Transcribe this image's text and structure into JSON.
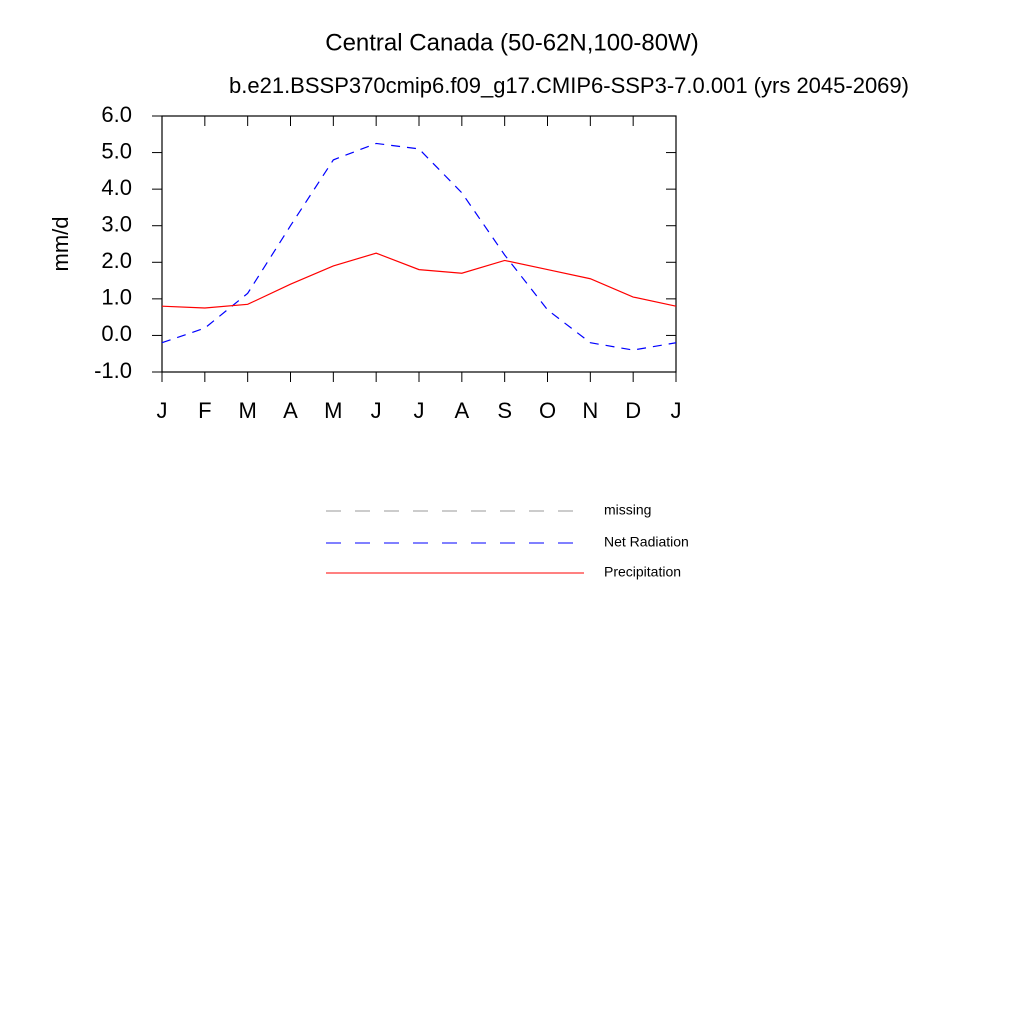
{
  "chart_data": {
    "type": "line",
    "title": "Central Canada (50-62N,100-80W)",
    "subtitle": "b.e21.BSSP370cmip6.f09_g17.CMIP6-SSP3-7.0.001 (yrs 2045-2069)",
    "y_label": "mm/d",
    "categories": [
      "J",
      "F",
      "M",
      "A",
      "M",
      "J",
      "J",
      "A",
      "S",
      "O",
      "N",
      "D",
      "J"
    ],
    "series": [
      {
        "name": "missing",
        "color": "#999999",
        "dashed": true,
        "values": [
          null,
          null,
          null,
          null,
          null,
          null,
          null,
          null,
          null,
          null,
          null,
          null,
          null
        ]
      },
      {
        "name": "Net Radiation",
        "color": "#0000ff",
        "dashed": true,
        "values": [
          -0.2,
          0.2,
          1.15,
          3.0,
          4.8,
          5.25,
          5.1,
          3.9,
          2.2,
          0.7,
          -0.2,
          -0.4,
          -0.2
        ]
      },
      {
        "name": "Precipitation",
        "color": "#ff0000",
        "dashed": false,
        "values": [
          0.8,
          0.75,
          0.85,
          1.4,
          1.9,
          2.25,
          1.8,
          1.7,
          2.05,
          1.8,
          1.55,
          1.05,
          0.8
        ]
      }
    ],
    "ylim": [
      -1,
      6
    ],
    "yticks": [
      {
        "value": -1,
        "label": "-1.0"
      },
      {
        "value": 0,
        "label": "0.0"
      },
      {
        "value": 1,
        "label": "1.0"
      },
      {
        "value": 2,
        "label": "2.0"
      },
      {
        "value": 3,
        "label": "3.0"
      },
      {
        "value": 4,
        "label": "4.0"
      },
      {
        "value": 5,
        "label": "5.0"
      },
      {
        "value": 6,
        "label": "6.0"
      }
    ],
    "grid": false
  }
}
